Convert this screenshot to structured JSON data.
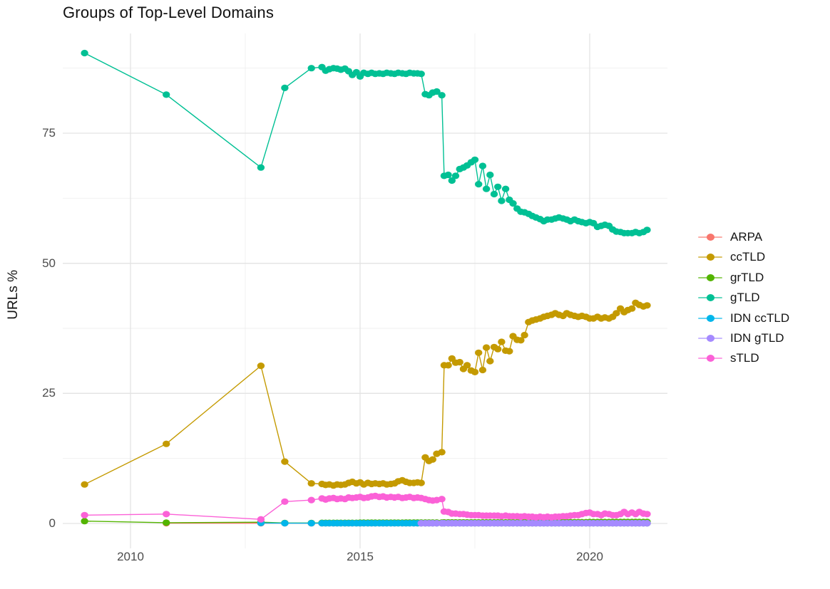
{
  "title": "Groups of Top-Level Domains",
  "y_axis": {
    "label": "URLs %"
  },
  "panel": {
    "background": "#FFFFFF",
    "grid_major_color": "#E3E3E3",
    "grid_minor_color": "#EFEFEF"
  },
  "chart_data": {
    "type": "line",
    "title": "Groups of Top-Level Domains",
    "xlabel": "",
    "ylabel": "URLs %",
    "legend_position": "right",
    "grid": true,
    "xlim": [
      2008.5,
      2021.7
    ],
    "ylim": [
      -4.8,
      94.2
    ],
    "x_ticks": [
      {
        "value": 2010,
        "label": "2010"
      },
      {
        "value": 2015,
        "label": "2015"
      },
      {
        "value": 2020,
        "label": "2020"
      }
    ],
    "y_ticks": [
      {
        "value": 0,
        "label": "0"
      },
      {
        "value": 25,
        "label": "25"
      },
      {
        "value": 50,
        "label": "50"
      },
      {
        "value": 75,
        "label": "75"
      }
    ],
    "x_minor": [
      2012.5,
      2017.5
    ],
    "y_minor": [
      12.5,
      37.5,
      62.5,
      87.5
    ],
    "x": [
      2009.0,
      2010.78,
      2012.84,
      2013.36,
      2013.94,
      2014.17,
      2014.25,
      2014.33,
      2014.42,
      2014.5,
      2014.58,
      2014.67,
      2014.75,
      2014.83,
      2014.92,
      2015.0,
      2015.08,
      2015.17,
      2015.25,
      2015.33,
      2015.42,
      2015.5,
      2015.58,
      2015.67,
      2015.75,
      2015.83,
      2015.92,
      2016.0,
      2016.08,
      2016.17,
      2016.25,
      2016.33,
      2016.42,
      2016.5,
      2016.58,
      2016.67,
      2016.78,
      2016.83,
      2016.92,
      2017.0,
      2017.08,
      2017.17,
      2017.25,
      2017.33,
      2017.42,
      2017.5,
      2017.58,
      2017.67,
      2017.75,
      2017.83,
      2017.92,
      2018.0,
      2018.08,
      2018.17,
      2018.25,
      2018.33,
      2018.42,
      2018.5,
      2018.58,
      2018.67,
      2018.75,
      2018.83,
      2018.92,
      2019.0,
      2019.08,
      2019.17,
      2019.25,
      2019.33,
      2019.42,
      2019.5,
      2019.58,
      2019.67,
      2019.75,
      2019.83,
      2019.92,
      2020.0,
      2020.08,
      2020.17,
      2020.25,
      2020.33,
      2020.42,
      2020.5,
      2020.58,
      2020.67,
      2020.75,
      2020.83,
      2020.92,
      2021.0,
      2021.08,
      2021.17,
      2021.25
    ],
    "series": [
      {
        "name": "ARPA",
        "color": "#F8766D",
        "values": [
          null,
          0.05,
          0.05,
          0.05,
          0.04,
          0.04,
          0.04,
          0.04,
          0.04,
          0.04,
          0.04,
          0.04,
          0.04,
          0.04,
          0.04,
          0.04,
          0.04,
          0.04,
          0.04,
          0.04,
          0.04,
          0.04,
          0.04,
          0.04,
          0.04,
          0.04,
          0.04,
          0.04,
          0.04,
          0.04,
          0.04,
          0.04,
          0.04,
          0.04,
          0.04,
          0.04,
          0.04,
          0.04,
          0.04,
          0.04,
          0.04,
          0.04,
          0.04,
          0.04,
          0.04,
          0.04,
          0.04,
          0.04,
          0.04,
          0.04,
          0.04,
          0.04,
          0.04,
          0.04,
          0.04,
          0.04,
          0.04,
          0.04,
          0.04,
          0.04,
          0.04,
          0.04,
          0.04,
          0.04,
          0.04,
          0.04,
          0.04,
          0.04,
          0.04,
          0.04,
          0.04,
          0.04,
          0.04,
          0.04,
          0.04,
          0.04,
          0.04,
          0.04,
          0.04,
          0.04,
          0.04,
          0.04,
          0.04,
          0.04,
          0.04,
          0.04,
          0.04,
          0.04,
          0.04,
          0.04,
          0.04
        ]
      },
      {
        "name": "ccTLD",
        "color": "#C49A00",
        "values": [
          7.5,
          15.3,
          30.3,
          11.9,
          7.7,
          7.6,
          7.4,
          7.5,
          7.3,
          7.5,
          7.4,
          7.5,
          7.8,
          8.0,
          7.7,
          7.9,
          7.5,
          7.8,
          7.6,
          7.7,
          7.6,
          7.7,
          7.5,
          7.6,
          7.7,
          8.1,
          8.3,
          8.0,
          7.8,
          7.8,
          7.9,
          7.8,
          12.7,
          12.0,
          12.3,
          13.4,
          13.7,
          30.4,
          30.4,
          31.7,
          30.9,
          31.0,
          29.7,
          30.4,
          29.4,
          29.1,
          32.8,
          29.5,
          33.8,
          31.2,
          33.9,
          33.5,
          34.9,
          33.2,
          33.1,
          36.0,
          35.3,
          35.2,
          36.2,
          38.7,
          39.0,
          39.2,
          39.4,
          39.7,
          39.9,
          40.1,
          40.4,
          40.1,
          39.9,
          40.4,
          40.1,
          39.9,
          39.7,
          39.9,
          39.7,
          39.4,
          39.4,
          39.7,
          39.4,
          39.6,
          39.4,
          39.7,
          40.4,
          41.3,
          40.6,
          41.0,
          41.3,
          42.4,
          42.0,
          41.7,
          41.9
        ]
      },
      {
        "name": "grTLD",
        "color": "#53B400",
        "values": [
          0.45,
          0.15,
          0.25,
          0.1,
          0.1,
          0.12,
          0.12,
          0.12,
          0.12,
          0.12,
          0.12,
          0.12,
          0.12,
          0.12,
          0.12,
          0.15,
          0.15,
          0.15,
          0.15,
          0.15,
          0.15,
          0.15,
          0.15,
          0.15,
          0.15,
          0.15,
          0.15,
          0.18,
          0.18,
          0.18,
          0.18,
          0.18,
          0.18,
          0.18,
          0.18,
          0.18,
          0.18,
          0.2,
          0.2,
          0.2,
          0.2,
          0.2,
          0.2,
          0.2,
          0.2,
          0.2,
          0.2,
          0.2,
          0.2,
          0.2,
          0.2,
          0.2,
          0.2,
          0.2,
          0.2,
          0.2,
          0.2,
          0.22,
          0.22,
          0.22,
          0.22,
          0.22,
          0.22,
          0.25,
          0.25,
          0.25,
          0.25,
          0.25,
          0.25,
          0.25,
          0.25,
          0.25,
          0.25,
          0.25,
          0.25,
          0.28,
          0.28,
          0.28,
          0.28,
          0.28,
          0.28,
          0.3,
          0.3,
          0.3,
          0.3,
          0.3,
          0.3,
          0.3,
          0.3,
          0.3,
          0.3
        ]
      },
      {
        "name": "gTLD",
        "color": "#00C094",
        "values": [
          90.4,
          82.4,
          68.4,
          83.7,
          87.5,
          87.7,
          87.0,
          87.3,
          87.5,
          87.4,
          87.2,
          87.4,
          86.9,
          86.2,
          86.7,
          85.9,
          86.6,
          86.4,
          86.6,
          86.4,
          86.5,
          86.4,
          86.6,
          86.5,
          86.4,
          86.6,
          86.5,
          86.4,
          86.6,
          86.5,
          86.5,
          86.4,
          82.5,
          82.3,
          82.8,
          83.0,
          82.3,
          66.8,
          67.0,
          65.9,
          66.8,
          68.1,
          68.4,
          68.8,
          69.4,
          69.9,
          65.2,
          68.7,
          64.3,
          67.0,
          63.3,
          64.7,
          62.0,
          64.3,
          62.2,
          61.5,
          60.5,
          59.9,
          59.8,
          59.5,
          59.1,
          58.8,
          58.5,
          58.1,
          58.4,
          58.4,
          58.6,
          58.8,
          58.6,
          58.4,
          58.1,
          58.4,
          58.1,
          57.9,
          57.7,
          57.9,
          57.7,
          57.0,
          57.2,
          57.4,
          57.2,
          56.5,
          56.1,
          56.0,
          55.8,
          55.8,
          55.8,
          56.0,
          55.8,
          56.0,
          56.4
        ]
      },
      {
        "name": "IDN ccTLD",
        "color": "#00B6EB",
        "values": [
          null,
          null,
          0.1,
          0.05,
          0.05,
          0.05,
          0.05,
          0.05,
          0.05,
          0.05,
          0.05,
          0.05,
          0.05,
          0.05,
          0.05,
          0.05,
          0.05,
          0.05,
          0.05,
          0.05,
          0.05,
          0.05,
          0.05,
          0.05,
          0.05,
          0.05,
          0.05,
          0.05,
          0.05,
          0.05,
          0.05,
          0.05,
          0.05,
          0.05,
          0.05,
          0.05,
          0.05,
          0.05,
          0.05,
          0.05,
          0.05,
          0.05,
          0.05,
          0.05,
          0.05,
          0.05,
          0.05,
          0.05,
          0.05,
          0.05,
          0.05,
          0.05,
          0.05,
          0.05,
          0.05,
          0.05,
          0.05,
          0.05,
          0.05,
          0.05,
          0.05,
          0.05,
          0.05,
          0.05,
          0.05,
          0.05,
          0.05,
          0.05,
          0.05,
          0.05,
          0.05,
          0.05,
          0.05,
          0.05,
          0.05,
          0.05,
          0.05,
          0.05,
          0.05,
          0.05,
          0.05,
          0.05,
          0.05,
          0.05,
          0.05,
          0.05,
          0.05,
          0.05,
          0.05,
          0.05,
          0.05
        ]
      },
      {
        "name": "IDN gTLD",
        "color": "#A58AFF",
        "values": [
          null,
          null,
          null,
          null,
          null,
          null,
          null,
          null,
          null,
          null,
          null,
          null,
          null,
          null,
          null,
          null,
          null,
          null,
          null,
          null,
          null,
          null,
          null,
          null,
          null,
          null,
          null,
          null,
          null,
          null,
          null,
          0.06,
          0.05,
          0.05,
          0.05,
          0.05,
          0.05,
          0.05,
          0.05,
          0.05,
          0.05,
          0.05,
          0.05,
          0.05,
          0.05,
          0.05,
          0.05,
          0.05,
          0.05,
          0.05,
          0.05,
          0.05,
          0.05,
          0.05,
          0.05,
          0.05,
          0.05,
          0.05,
          0.05,
          0.05,
          0.05,
          0.05,
          0.05,
          0.05,
          0.05,
          0.05,
          0.05,
          0.05,
          0.05,
          0.05,
          0.05,
          0.05,
          0.05,
          0.05,
          0.05,
          0.05,
          0.05,
          0.05,
          0.05,
          0.05,
          0.05,
          0.05,
          0.05,
          0.05,
          0.05,
          0.05,
          0.05,
          0.05,
          0.05,
          0.05,
          0.05
        ]
      },
      {
        "name": "sTLD",
        "color": "#FB61D7",
        "values": [
          1.6,
          1.8,
          0.8,
          4.2,
          4.5,
          4.8,
          4.6,
          4.8,
          4.9,
          4.7,
          4.8,
          4.7,
          5.0,
          4.9,
          5.0,
          5.1,
          4.9,
          5.0,
          5.2,
          5.3,
          5.1,
          5.2,
          5.0,
          5.1,
          5.0,
          5.1,
          4.9,
          5.0,
          5.1,
          4.9,
          5.0,
          4.9,
          4.7,
          4.5,
          4.4,
          4.5,
          4.7,
          2.3,
          2.2,
          1.9,
          1.9,
          1.8,
          1.8,
          1.7,
          1.6,
          1.6,
          1.6,
          1.5,
          1.5,
          1.5,
          1.5,
          1.5,
          1.4,
          1.5,
          1.4,
          1.4,
          1.4,
          1.3,
          1.4,
          1.3,
          1.3,
          1.2,
          1.3,
          1.2,
          1.3,
          1.2,
          1.3,
          1.3,
          1.4,
          1.4,
          1.5,
          1.6,
          1.6,
          1.8,
          2.0,
          2.1,
          1.8,
          1.8,
          1.6,
          1.9,
          1.8,
          1.6,
          1.6,
          1.8,
          2.2,
          1.8,
          2.1,
          1.8,
          2.2,
          1.9,
          1.8
        ]
      }
    ]
  }
}
